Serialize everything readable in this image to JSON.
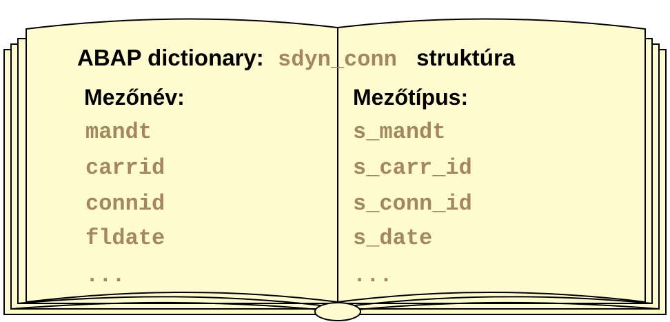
{
  "title": {
    "prefix": "ABAP dictionary:",
    "name": "sdyn_conn",
    "suffix": "struktúra"
  },
  "columns": [
    "Mezőnév:",
    "Mezőtípus:"
  ],
  "rows": [
    [
      "mandt",
      "s_mandt"
    ],
    [
      "carrid",
      "s_carr_id"
    ],
    [
      "connid",
      "s_conn_id"
    ],
    [
      "fldate",
      "s_date"
    ],
    [
      "...",
      "..."
    ]
  ]
}
